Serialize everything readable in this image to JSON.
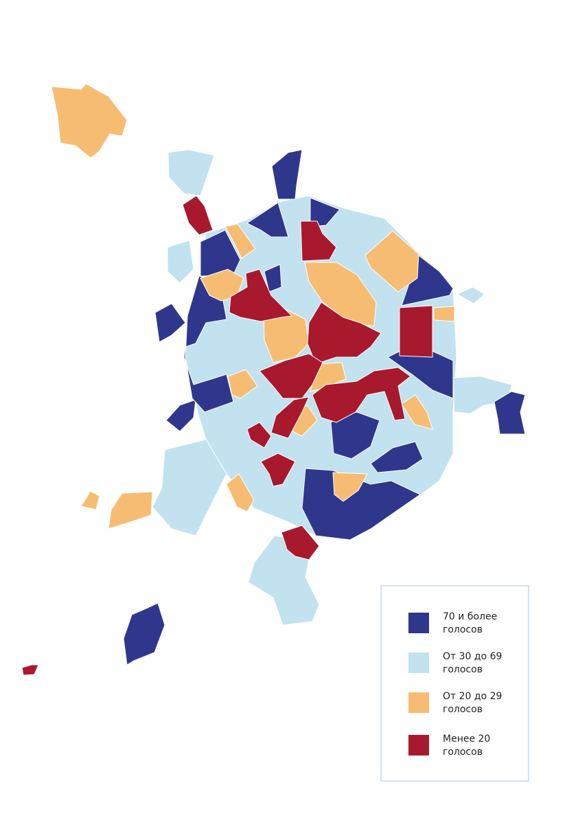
{
  "legend": {
    "items": [
      {
        "lines": [
          "70 и более",
          "голосов"
        ],
        "color": "#2f378c"
      },
      {
        "lines": [
          "От 30 до 69",
          "голосов"
        ],
        "color": "#c1e2ee"
      },
      {
        "lines": [
          "От 20 до 29",
          "голосов"
        ],
        "color": "#f6bd72"
      },
      {
        "lines": [
          "Менее 20",
          "голосов"
        ],
        "color": "#a8192e"
      }
    ]
  }
}
